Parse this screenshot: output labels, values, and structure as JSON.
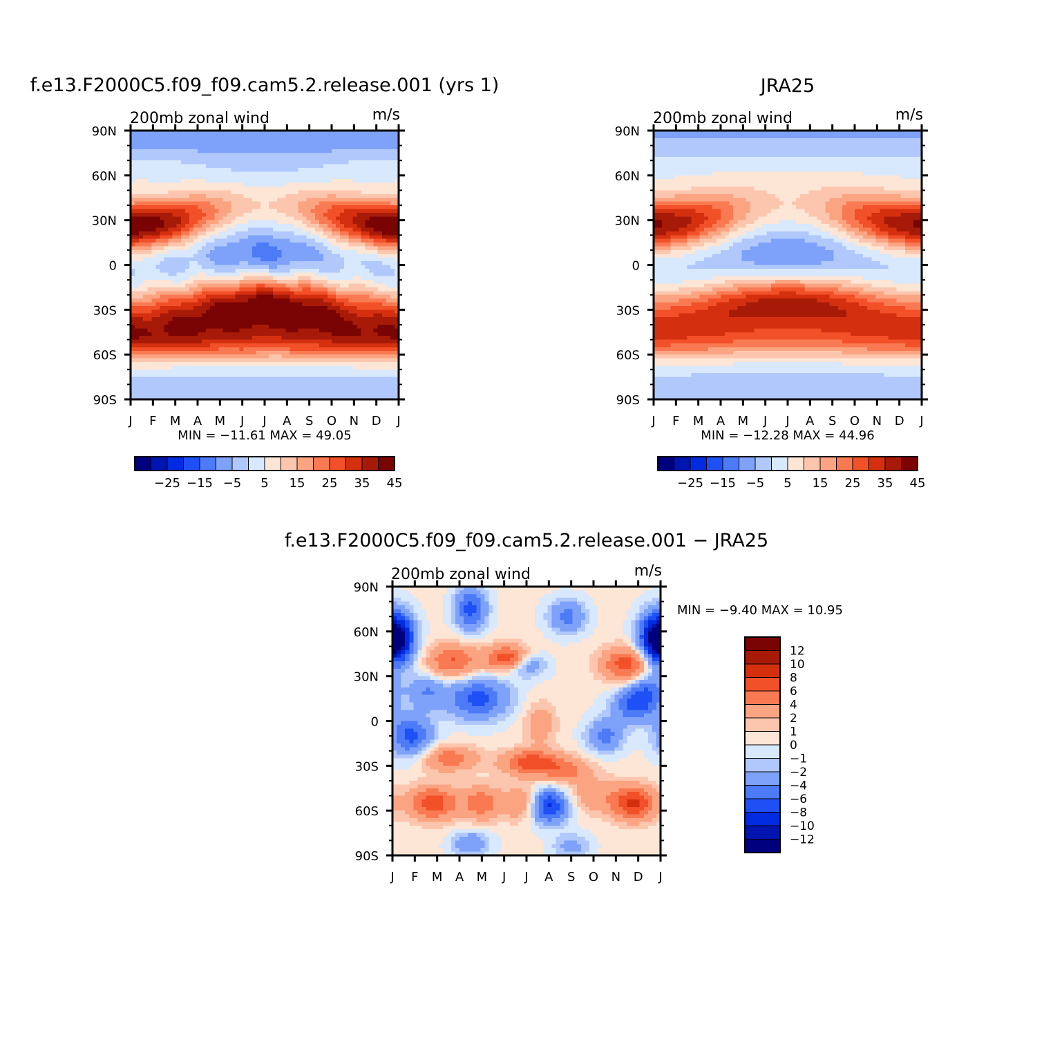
{
  "chart_data": [
    {
      "id": "model",
      "type": "heatmap",
      "title": "f.e13.F2000C5.f09_f09.cam5.2.release.001 (yrs 1)",
      "left_label": "200mb zonal wind",
      "units": "m/s",
      "x_ticks": [
        "J",
        "F",
        "M",
        "A",
        "M",
        "J",
        "J",
        "A",
        "S",
        "O",
        "N",
        "D",
        "J"
      ],
      "y_ticks": [
        "90N",
        "60N",
        "30N",
        "0",
        "30S",
        "60S",
        "90S"
      ],
      "xlim": [
        0,
        12
      ],
      "ylim": [
        -90,
        90
      ],
      "stats_text": "MIN = −11.61 MAX =   49.05",
      "min": -11.61,
      "max": 49.05,
      "colorbar": {
        "orientation": "horizontal",
        "labels": [
          "−25",
          "−15",
          "−5",
          "5",
          "15",
          "25",
          "35",
          "45"
        ],
        "levels": [
          -30,
          -25,
          -20,
          -15,
          -10,
          -5,
          0,
          5,
          10,
          15,
          20,
          25,
          30,
          35,
          40,
          45
        ]
      }
    },
    {
      "id": "obs",
      "type": "heatmap",
      "title": "JRA25",
      "left_label": "200mb zonal wind",
      "units": "m/s",
      "x_ticks": [
        "J",
        "F",
        "M",
        "A",
        "M",
        "J",
        "J",
        "A",
        "S",
        "O",
        "N",
        "D",
        "J"
      ],
      "y_ticks": [
        "90N",
        "60N",
        "30N",
        "0",
        "30S",
        "60S",
        "90S"
      ],
      "xlim": [
        0,
        12
      ],
      "ylim": [
        -90,
        90
      ],
      "stats_text": "MIN = −12.28 MAX =   44.96",
      "min": -12.28,
      "max": 44.96,
      "colorbar": {
        "orientation": "horizontal",
        "labels": [
          "−25",
          "−15",
          "−5",
          "5",
          "15",
          "25",
          "35",
          "45"
        ],
        "levels": [
          -30,
          -25,
          -20,
          -15,
          -10,
          -5,
          0,
          5,
          10,
          15,
          20,
          25,
          30,
          35,
          40,
          45
        ]
      }
    },
    {
      "id": "diff",
      "type": "heatmap",
      "title": "f.e13.F2000C5.f09_f09.cam5.2.release.001 − JRA25",
      "left_label": "200mb zonal wind",
      "units": "m/s",
      "x_ticks": [
        "J",
        "F",
        "M",
        "A",
        "M",
        "J",
        "J",
        "A",
        "S",
        "O",
        "N",
        "D",
        "J"
      ],
      "y_ticks": [
        "90N",
        "60N",
        "30N",
        "0",
        "30S",
        "60S",
        "90S"
      ],
      "xlim": [
        0,
        12
      ],
      "ylim": [
        -90,
        90
      ],
      "stats_text": "MIN =   −9.40  MAX =   10.95",
      "min": -9.4,
      "max": 10.95,
      "colorbar": {
        "orientation": "vertical",
        "labels": [
          "12",
          "10",
          "8",
          "6",
          "4",
          "2",
          "1",
          "0",
          "−1",
          "−2",
          "−4",
          "−6",
          "−8",
          "−10",
          "−12"
        ],
        "levels": [
          -12,
          -10,
          -8,
          -6,
          -4,
          -2,
          -1,
          0,
          1,
          2,
          4,
          6,
          8,
          10,
          12
        ]
      }
    }
  ],
  "palette": [
    "#00007f",
    "#0015b0",
    "#002be0",
    "#1e50f5",
    "#4d7af7",
    "#7ea2f9",
    "#b0c8fb",
    "#d8e8fd",
    "#fde6d6",
    "#fcc6ae",
    "#fba482",
    "#f97a52",
    "#f15028",
    "#d4300f",
    "#a81a08",
    "#7a0403"
  ]
}
